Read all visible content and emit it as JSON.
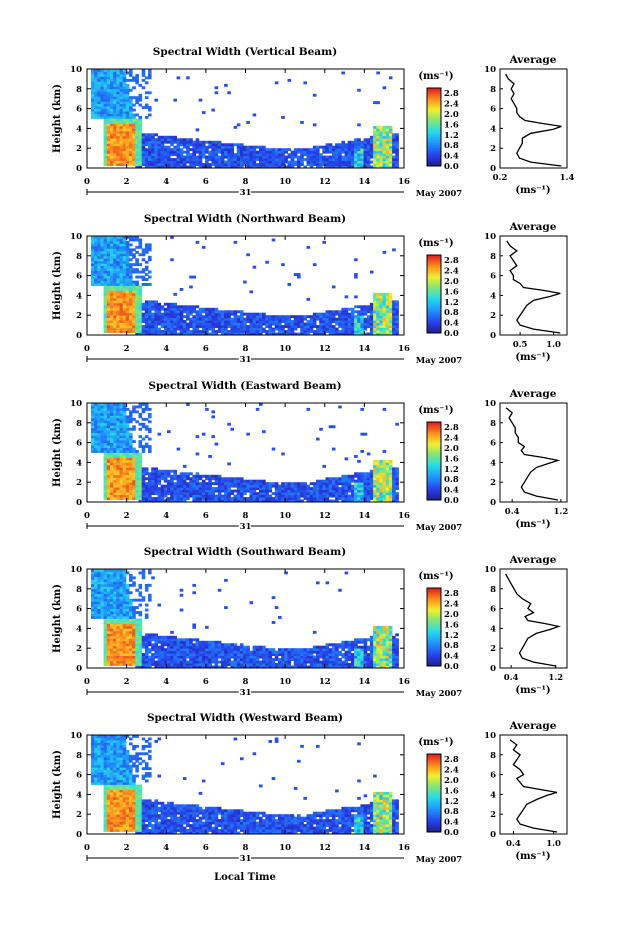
{
  "figure": {
    "xlabel": "Local Time",
    "date_label": "May 2007",
    "day_label": "31",
    "colorbar_unit": "(ms⁻¹)",
    "colorbar_ticks": [
      "2.8",
      "2.4",
      "2.0",
      "1.6",
      "1.2",
      "0.8",
      "0.4",
      "0.0"
    ],
    "avg_title": "Average",
    "avg_xlabel": "(ms⁻¹)",
    "ylabel": "Height (km)"
  },
  "chart_data": [
    {
      "type": "heatmap",
      "title": "Spectral Width (Vertical Beam)",
      "xlabel": "Local Time",
      "ylabel": "Height (km)",
      "x_ticks": [
        "0",
        "2",
        "4",
        "6",
        "8",
        "10",
        "12",
        "14",
        "16"
      ],
      "y_ticks": [
        "0",
        "2",
        "4",
        "6",
        "8",
        "10"
      ],
      "xlim": [
        0,
        16
      ],
      "ylim": [
        0,
        10
      ],
      "clim": [
        0.0,
        3.0
      ],
      "colorbar_unit": "ms-1",
      "average_profile": {
        "x_ticks": [
          "0.2",
          "1.4"
        ],
        "xlim": [
          0.2,
          1.4
        ],
        "height_km": [
          0.2,
          0.6,
          1.0,
          1.5,
          2.0,
          2.5,
          3.0,
          3.5,
          3.9,
          4.2,
          4.5,
          4.8,
          5.2,
          5.6,
          6.0,
          6.5,
          7.0,
          7.5,
          8.0,
          8.5,
          9.0,
          9.5
        ],
        "width_ms": [
          1.3,
          0.75,
          0.55,
          0.5,
          0.55,
          0.6,
          0.6,
          0.75,
          1.15,
          1.3,
          0.95,
          0.65,
          0.55,
          0.5,
          0.5,
          0.45,
          0.4,
          0.45,
          0.4,
          0.45,
          0.35,
          0.3
        ]
      }
    },
    {
      "type": "heatmap",
      "title": "Spectral Width (Northward Beam)",
      "xlabel": "Local Time",
      "ylabel": "Height (km)",
      "x_ticks": [
        "0",
        "2",
        "4",
        "6",
        "8",
        "10",
        "12",
        "14",
        "16"
      ],
      "y_ticks": [
        "0",
        "2",
        "4",
        "6",
        "8",
        "10"
      ],
      "xlim": [
        0,
        16
      ],
      "ylim": [
        0,
        10
      ],
      "clim": [
        0.0,
        3.0
      ],
      "colorbar_unit": "ms-1",
      "average_profile": {
        "x_ticks": [
          "0.5",
          "1.0"
        ],
        "xlim": [
          0.2,
          1.2
        ],
        "height_km": [
          0.2,
          0.6,
          1.0,
          1.5,
          2.0,
          2.5,
          3.0,
          3.5,
          3.9,
          4.2,
          4.5,
          4.8,
          5.2,
          5.6,
          6.0,
          6.5,
          7.0,
          7.5,
          8.0,
          8.5,
          9.0,
          9.5
        ],
        "width_ms": [
          1.1,
          0.7,
          0.5,
          0.45,
          0.5,
          0.55,
          0.6,
          0.7,
          0.95,
          1.1,
          0.85,
          0.55,
          0.5,
          0.4,
          0.4,
          0.35,
          0.45,
          0.4,
          0.35,
          0.45,
          0.35,
          0.3
        ]
      }
    },
    {
      "type": "heatmap",
      "title": "Spectral Width (Eastward Beam)",
      "xlabel": "Local Time",
      "ylabel": "Height (km)",
      "x_ticks": [
        "0",
        "2",
        "4",
        "6",
        "8",
        "10",
        "12",
        "14",
        "16"
      ],
      "y_ticks": [
        "0",
        "2",
        "4",
        "6",
        "8",
        "10"
      ],
      "xlim": [
        0,
        16
      ],
      "ylim": [
        0,
        10
      ],
      "clim": [
        0.0,
        3.0
      ],
      "colorbar_unit": "ms-1",
      "average_profile": {
        "x_ticks": [
          "0.4",
          "1.2"
        ],
        "xlim": [
          0.2,
          1.3
        ],
        "height_km": [
          0.2,
          0.6,
          1.0,
          1.5,
          2.0,
          2.5,
          3.0,
          3.5,
          3.9,
          4.2,
          4.5,
          4.8,
          5.2,
          5.6,
          6.0,
          6.5,
          7.0,
          7.5,
          8.0,
          8.5,
          9.0,
          9.5
        ],
        "width_ms": [
          1.15,
          0.8,
          0.6,
          0.55,
          0.6,
          0.65,
          0.7,
          0.8,
          1.0,
          1.15,
          0.9,
          0.6,
          0.55,
          0.6,
          0.5,
          0.5,
          0.45,
          0.45,
          0.4,
          0.35,
          0.4,
          0.3
        ]
      }
    },
    {
      "type": "heatmap",
      "title": "Spectral Width (Southward Beam)",
      "xlabel": "Local Time",
      "ylabel": "Height (km)",
      "x_ticks": [
        "0",
        "2",
        "4",
        "6",
        "8",
        "10",
        "12",
        "14",
        "16"
      ],
      "y_ticks": [
        "0",
        "2",
        "4",
        "6",
        "8",
        "10"
      ],
      "xlim": [
        0,
        16
      ],
      "ylim": [
        0,
        10
      ],
      "clim": [
        0.0,
        3.0
      ],
      "colorbar_unit": "ms-1",
      "average_profile": {
        "x_ticks": [
          "0.4",
          "1.2"
        ],
        "xlim": [
          0.2,
          1.4
        ],
        "height_km": [
          0.2,
          0.6,
          1.0,
          1.5,
          2.0,
          2.5,
          3.0,
          3.5,
          3.9,
          4.2,
          4.5,
          4.8,
          5.2,
          5.6,
          6.0,
          6.5,
          7.0,
          7.5,
          8.0,
          8.5,
          9.0,
          9.5
        ],
        "width_ms": [
          1.2,
          0.8,
          0.6,
          0.55,
          0.6,
          0.65,
          0.7,
          0.85,
          1.1,
          1.25,
          1.0,
          0.7,
          0.65,
          0.8,
          0.7,
          0.75,
          0.6,
          0.5,
          0.45,
          0.4,
          0.35,
          0.3
        ]
      }
    },
    {
      "type": "heatmap",
      "title": "Spectral Width (Westward Beam)",
      "xlabel": "Local Time",
      "ylabel": "Height (km)",
      "x_ticks": [
        "0",
        "2",
        "4",
        "6",
        "8",
        "10",
        "12",
        "14",
        "16"
      ],
      "y_ticks": [
        "0",
        "2",
        "4",
        "6",
        "8",
        "10"
      ],
      "xlim": [
        0,
        16
      ],
      "ylim": [
        0,
        10
      ],
      "clim": [
        0.0,
        3.0
      ],
      "colorbar_unit": "ms-1",
      "average_profile": {
        "x_ticks": [
          "0.4",
          "1.0"
        ],
        "xlim": [
          0.2,
          1.2
        ],
        "height_km": [
          0.2,
          0.6,
          1.0,
          1.5,
          2.0,
          2.5,
          3.0,
          3.5,
          3.9,
          4.2,
          4.5,
          4.8,
          5.2,
          5.6,
          6.0,
          6.5,
          7.0,
          7.5,
          8.0,
          8.5,
          9.0,
          9.5
        ],
        "width_ms": [
          1.05,
          0.7,
          0.5,
          0.45,
          0.5,
          0.55,
          0.6,
          0.75,
          0.9,
          1.05,
          0.8,
          0.55,
          0.5,
          0.45,
          0.55,
          0.5,
          0.4,
          0.45,
          0.5,
          0.4,
          0.45,
          0.35
        ]
      }
    }
  ]
}
